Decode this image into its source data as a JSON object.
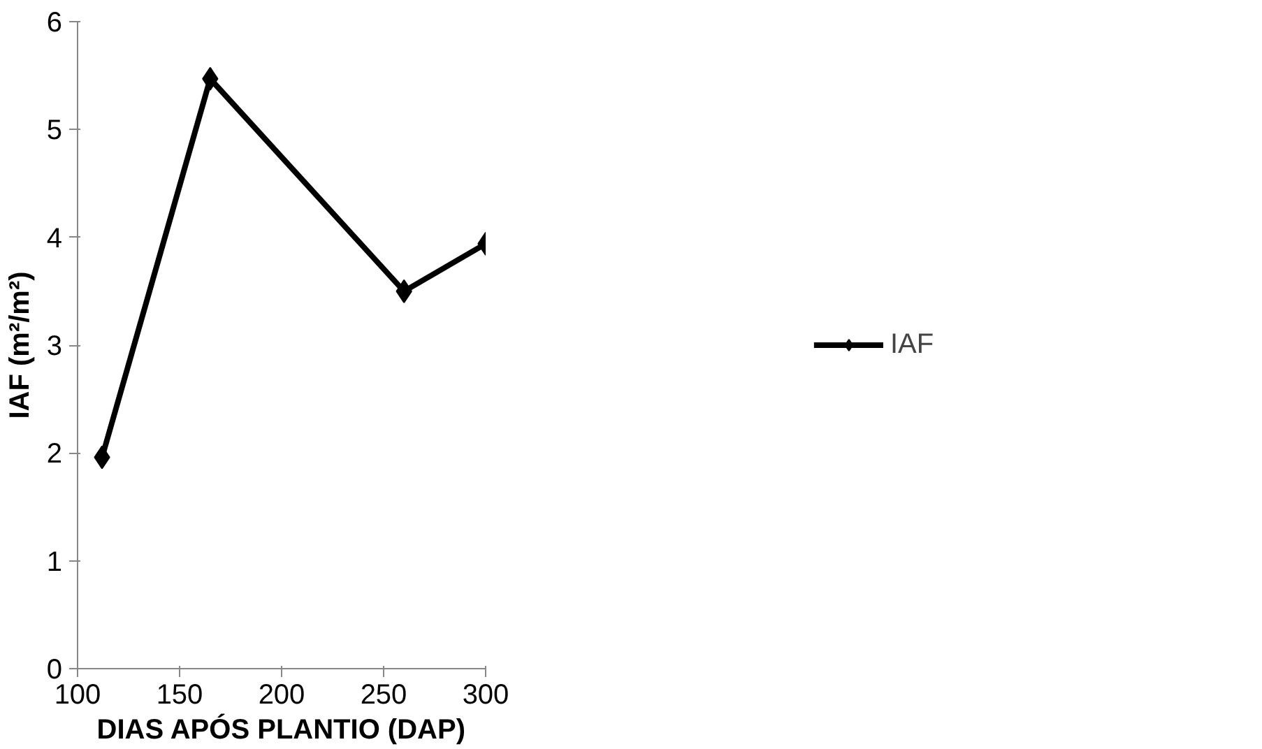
{
  "chart_data": {
    "type": "line",
    "xlabel": "DIAS APÓS PLANTIO (DAP)",
    "ylabel": "IAF (m²/m²)",
    "x": [
      112,
      165,
      260,
      300
    ],
    "series": [
      {
        "name": "IAF",
        "color": "#000000",
        "values": [
          1.96,
          5.47,
          3.5,
          3.94
        ]
      }
    ],
    "xlim": [
      100,
      300
    ],
    "xticks": [
      100,
      150,
      200,
      250,
      300
    ],
    "ylim": [
      0,
      6
    ],
    "yticks": [
      0,
      1,
      2,
      3,
      4,
      5,
      6
    ],
    "grid": false,
    "legend": "right",
    "marker": "diamond",
    "line_style": "solid"
  }
}
